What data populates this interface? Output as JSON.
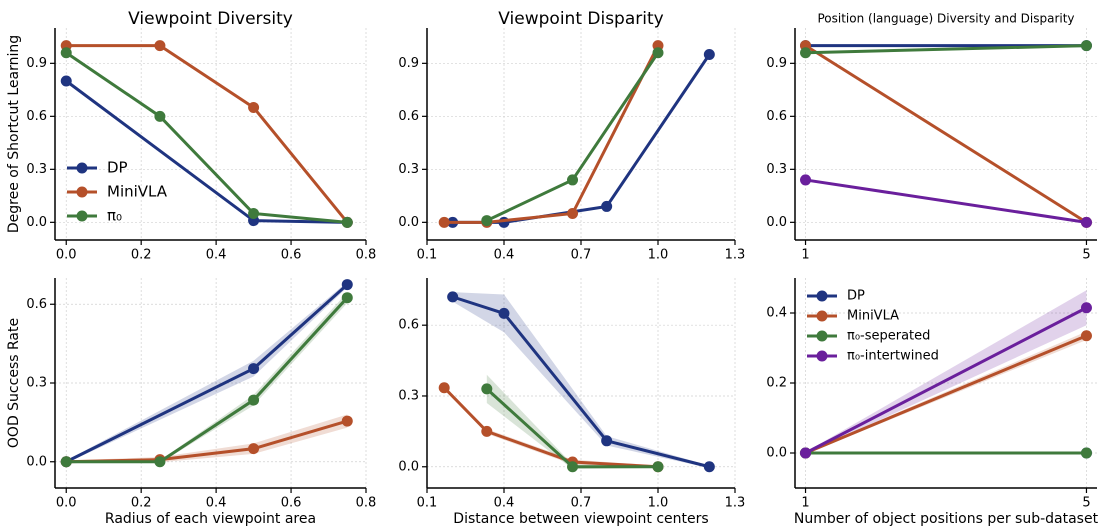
{
  "chart_data": [
    {
      "type": "line",
      "title": "Viewpoint Diversity",
      "ylabel": "Degree of Shortcut Learning",
      "xlim": [
        -0.03,
        0.8
      ],
      "ylim": [
        -0.1,
        1.1
      ],
      "xticks": [
        {
          "value": 0,
          "label": "0.0"
        },
        0.2,
        0.4,
        0.6,
        0.8
      ],
      "yticks": [
        {
          "value": 0,
          "label": "0.0"
        },
        0.3,
        0.6,
        0.9
      ],
      "grid": true,
      "legend": "lower left",
      "series": [
        {
          "name": "DP",
          "color": "#1f3480",
          "x": [
            0,
            0.5,
            0.75
          ],
          "values": [
            0.8,
            0.01,
            0
          ]
        },
        {
          "name": "MiniVLA",
          "color": "#b5502a",
          "x": [
            0,
            0.25,
            0.5,
            0.75
          ],
          "values": [
            1.0,
            1.0,
            0.65,
            0
          ]
        },
        {
          "name": "π₀",
          "color": "#3f7a3c",
          "x": [
            0,
            0.25,
            0.5,
            0.75
          ],
          "values": [
            0.96,
            0.6,
            0.05,
            0
          ]
        }
      ]
    },
    {
      "type": "line",
      "title": "Viewpoint Disparity",
      "xlim": [
        0.1,
        1.3
      ],
      "ylim": [
        -0.1,
        1.1
      ],
      "xticks": [
        0.1,
        0.4,
        0.7,
        {
          "value": 1,
          "label": "1.0"
        },
        1.3
      ],
      "yticks": [
        {
          "value": 0,
          "label": "0.0"
        },
        0.3,
        0.6,
        0.9
      ],
      "grid": true,
      "series": [
        {
          "name": "DP",
          "color": "#1f3480",
          "x": [
            0.2,
            0.4,
            0.8,
            1.2
          ],
          "values": [
            0,
            0,
            0.09,
            0.95
          ]
        },
        {
          "name": "MiniVLA",
          "color": "#b5502a",
          "x": [
            0.167,
            0.333,
            0.667,
            1.0
          ],
          "values": [
            0,
            0,
            0.05,
            1.0
          ]
        },
        {
          "name": "π₀",
          "color": "#3f7a3c",
          "x": [
            0.333,
            0.667,
            1.0
          ],
          "values": [
            0.01,
            0.24,
            0.96
          ]
        }
      ]
    },
    {
      "type": "line",
      "title": "Position (language) Diversity and Disparity",
      "xlim": [
        0.85,
        5.15
      ],
      "ylim": [
        -0.1,
        1.1
      ],
      "xticks": [
        1,
        5
      ],
      "yticks": [
        {
          "value": 0,
          "label": "0.0"
        },
        0.3,
        0.6,
        0.9
      ],
      "grid": true,
      "series": [
        {
          "name": "DP",
          "color": "#1f3480",
          "x": [
            1,
            5
          ],
          "values": [
            1.0,
            1.0
          ]
        },
        {
          "name": "MiniVLA",
          "color": "#b5502a",
          "x": [
            1,
            5
          ],
          "values": [
            1.0,
            0
          ]
        },
        {
          "name": "π₀-seperated",
          "color": "#3f7a3c",
          "x": [
            1,
            5
          ],
          "values": [
            0.96,
            1.0
          ]
        },
        {
          "name": "π₀-intertwined",
          "color": "#6a1f9c",
          "x": [
            1,
            5
          ],
          "values": [
            0.24,
            0
          ]
        }
      ]
    },
    {
      "type": "line",
      "ylabel": "OOD Success Rate",
      "xlabel": "Radius of each viewpoint area",
      "xlim": [
        -0.03,
        0.8
      ],
      "ylim": [
        -0.1,
        0.7
      ],
      "xticks": [
        {
          "value": 0,
          "label": "0.0"
        },
        0.2,
        0.4,
        0.6,
        0.8
      ],
      "yticks": [
        {
          "value": 0,
          "label": "0.0"
        },
        0.3,
        0.6
      ],
      "grid": true,
      "series": [
        {
          "name": "DP",
          "color": "#1f3480",
          "x": [
            0,
            0.5,
            0.75
          ],
          "values": [
            0,
            0.355,
            0.675
          ],
          "errors": [
            0.005,
            0.03,
            0.01
          ]
        },
        {
          "name": "MiniVLA",
          "color": "#b5502a",
          "x": [
            0,
            0.25,
            0.5,
            0.75
          ],
          "values": [
            0,
            0.008,
            0.05,
            0.155
          ],
          "errors": [
            0.005,
            0.01,
            0.02,
            0.025
          ]
        },
        {
          "name": "π₀",
          "color": "#3f7a3c",
          "x": [
            0,
            0.25,
            0.5,
            0.75
          ],
          "values": [
            0,
            0,
            0.235,
            0.625
          ],
          "errors": [
            0.005,
            0.005,
            0.02,
            0.02
          ]
        }
      ]
    },
    {
      "type": "line",
      "xlabel": "Distance between viewpoint centers",
      "xlim": [
        0.1,
        1.3
      ],
      "ylim": [
        -0.09,
        0.8
      ],
      "xticks": [
        0.1,
        0.4,
        0.7,
        {
          "value": 1,
          "label": "1.0"
        },
        1.3
      ],
      "yticks": [
        {
          "value": 0,
          "label": "0.0"
        },
        0.3,
        0.6
      ],
      "grid": true,
      "series": [
        {
          "name": "DP",
          "color": "#1f3480",
          "x": [
            0.2,
            0.4,
            0.8,
            1.2
          ],
          "values": [
            0.72,
            0.65,
            0.11,
            0
          ],
          "errors": [
            0.02,
            0.08,
            0.02,
            0.005
          ]
        },
        {
          "name": "MiniVLA",
          "color": "#b5502a",
          "x": [
            0.167,
            0.333,
            0.667,
            1.0
          ],
          "values": [
            0.335,
            0.15,
            0.02,
            0
          ],
          "errors": [
            0.005,
            0.01,
            0.01,
            0.005
          ]
        },
        {
          "name": "π₀",
          "color": "#3f7a3c",
          "x": [
            0.333,
            0.667,
            1.0
          ],
          "values": [
            0.33,
            0,
            0
          ],
          "errors": [
            0.06,
            0.01,
            0.005
          ]
        }
      ]
    },
    {
      "type": "line",
      "xlabel": "Number of object positions per sub-dataset",
      "xlim": [
        0.85,
        5.15
      ],
      "ylim": [
        -0.1,
        0.5
      ],
      "xticks": [
        1,
        5
      ],
      "yticks": [
        {
          "value": 0,
          "label": "0.0"
        },
        0.2,
        0.4
      ],
      "grid": true,
      "legend": "upper left",
      "series": [
        {
          "name": "DP",
          "color": "#1f3480",
          "x": [
            1,
            5
          ],
          "values": [
            0,
            0
          ],
          "errors": [
            0.003,
            0.003
          ]
        },
        {
          "name": "MiniVLA",
          "color": "#b5502a",
          "x": [
            1,
            5
          ],
          "values": [
            0,
            0.335
          ],
          "errors": [
            0.003,
            0.012
          ]
        },
        {
          "name": "π₀-seperated",
          "color": "#3f7a3c",
          "x": [
            1,
            5
          ],
          "values": [
            0,
            0
          ],
          "errors": [
            0.003,
            0.003
          ]
        },
        {
          "name": "π₀-intertwined",
          "color": "#6a1f9c",
          "x": [
            1,
            5
          ],
          "values": [
            0,
            0.415
          ],
          "errors": [
            0.003,
            0.05
          ]
        }
      ]
    }
  ]
}
